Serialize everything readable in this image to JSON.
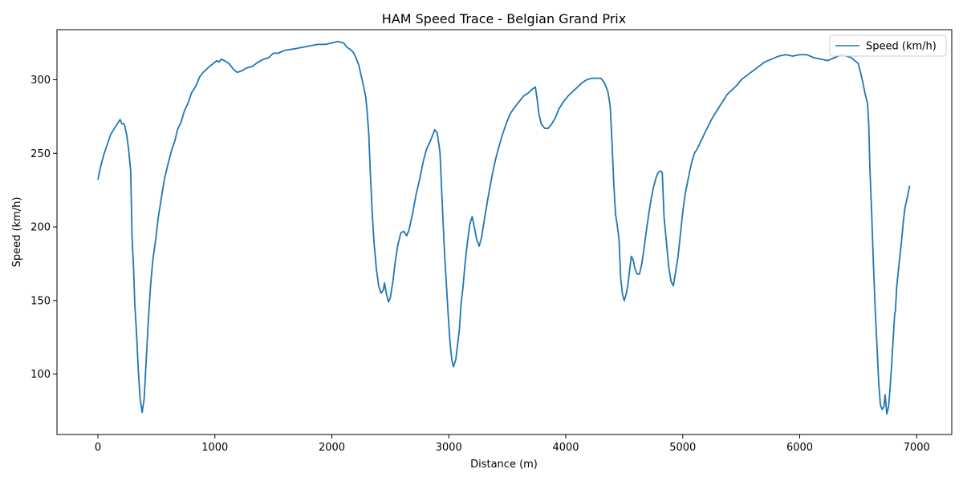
{
  "chart_data": {
    "type": "line",
    "title": "HAM Speed Trace - Belgian Grand Prix",
    "xlabel": "Distance (m)",
    "ylabel": "Speed (km/h)",
    "xlim": [
      -350,
      7300
    ],
    "ylim": [
      59,
      334
    ],
    "xticks": [
      0,
      1000,
      2000,
      3000,
      4000,
      5000,
      6000,
      7000
    ],
    "yticks": [
      100,
      150,
      200,
      250,
      300
    ],
    "grid": false,
    "legend_position": "top-right",
    "series_color": "#1f77b4",
    "series": [
      {
        "name": "Speed (km/h)",
        "points": [
          [
            0,
            232
          ],
          [
            20,
            240
          ],
          [
            50,
            249
          ],
          [
            80,
            256
          ],
          [
            110,
            263
          ],
          [
            150,
            268
          ],
          [
            190,
            273
          ],
          [
            205,
            270
          ],
          [
            225,
            270
          ],
          [
            245,
            263
          ],
          [
            262,
            253
          ],
          [
            280,
            238
          ],
          [
            292,
            193
          ],
          [
            305,
            172
          ],
          [
            315,
            148
          ],
          [
            330,
            128
          ],
          [
            345,
            103
          ],
          [
            360,
            84
          ],
          [
            378,
            74
          ],
          [
            395,
            83
          ],
          [
            410,
            105
          ],
          [
            430,
            135
          ],
          [
            450,
            160
          ],
          [
            470,
            178
          ],
          [
            495,
            192
          ],
          [
            515,
            206
          ],
          [
            545,
            221
          ],
          [
            570,
            233
          ],
          [
            600,
            243
          ],
          [
            630,
            252
          ],
          [
            660,
            259
          ],
          [
            680,
            266
          ],
          [
            710,
            271
          ],
          [
            740,
            279
          ],
          [
            770,
            284
          ],
          [
            800,
            291
          ],
          [
            840,
            296
          ],
          [
            870,
            302
          ],
          [
            900,
            305
          ],
          [
            940,
            308
          ],
          [
            970,
            310
          ],
          [
            1000,
            312
          ],
          [
            1020,
            313
          ],
          [
            1035,
            312
          ],
          [
            1055,
            314
          ],
          [
            1080,
            313
          ],
          [
            1120,
            311
          ],
          [
            1160,
            307
          ],
          [
            1190,
            305
          ],
          [
            1230,
            306
          ],
          [
            1270,
            308
          ],
          [
            1320,
            309
          ],
          [
            1370,
            312
          ],
          [
            1420,
            314
          ],
          [
            1460,
            315
          ],
          [
            1500,
            318
          ],
          [
            1540,
            318
          ],
          [
            1600,
            320
          ],
          [
            1680,
            321
          ],
          [
            1750,
            322
          ],
          [
            1810,
            323
          ],
          [
            1880,
            324
          ],
          [
            1950,
            324
          ],
          [
            2000,
            325
          ],
          [
            2050,
            326
          ],
          [
            2100,
            325
          ],
          [
            2130,
            322
          ],
          [
            2150,
            321
          ],
          [
            2180,
            319
          ],
          [
            2200,
            316
          ],
          [
            2230,
            310
          ],
          [
            2250,
            303
          ],
          [
            2270,
            296
          ],
          [
            2290,
            288
          ],
          [
            2300,
            280
          ],
          [
            2315,
            264
          ],
          [
            2330,
            235
          ],
          [
            2345,
            210
          ],
          [
            2360,
            190
          ],
          [
            2380,
            172
          ],
          [
            2400,
            160
          ],
          [
            2420,
            155
          ],
          [
            2440,
            157
          ],
          [
            2450,
            162
          ],
          [
            2465,
            155
          ],
          [
            2485,
            149
          ],
          [
            2500,
            152
          ],
          [
            2520,
            162
          ],
          [
            2545,
            178
          ],
          [
            2565,
            188
          ],
          [
            2590,
            196
          ],
          [
            2615,
            197
          ],
          [
            2640,
            194
          ],
          [
            2660,
            198
          ],
          [
            2690,
            209
          ],
          [
            2720,
            222
          ],
          [
            2750,
            232
          ],
          [
            2780,
            244
          ],
          [
            2810,
            253
          ],
          [
            2840,
            258
          ],
          [
            2860,
            262
          ],
          [
            2880,
            266
          ],
          [
            2900,
            264
          ],
          [
            2915,
            256
          ],
          [
            2925,
            250
          ],
          [
            2935,
            232
          ],
          [
            2950,
            205
          ],
          [
            2965,
            180
          ],
          [
            2980,
            160
          ],
          [
            2995,
            140
          ],
          [
            3010,
            122
          ],
          [
            3025,
            110
          ],
          [
            3040,
            105
          ],
          [
            3060,
            110
          ],
          [
            3075,
            120
          ],
          [
            3090,
            130
          ],
          [
            3105,
            148
          ],
          [
            3120,
            158
          ],
          [
            3140,
            176
          ],
          [
            3160,
            190
          ],
          [
            3180,
            202
          ],
          [
            3200,
            207
          ],
          [
            3220,
            199
          ],
          [
            3240,
            191
          ],
          [
            3260,
            187
          ],
          [
            3280,
            193
          ],
          [
            3310,
            208
          ],
          [
            3340,
            222
          ],
          [
            3370,
            235
          ],
          [
            3400,
            246
          ],
          [
            3430,
            255
          ],
          [
            3460,
            263
          ],
          [
            3490,
            270
          ],
          [
            3520,
            276
          ],
          [
            3550,
            280
          ],
          [
            3580,
            283
          ],
          [
            3610,
            286
          ],
          [
            3640,
            289
          ],
          [
            3680,
            291
          ],
          [
            3720,
            294
          ],
          [
            3740,
            295
          ],
          [
            3755,
            287
          ],
          [
            3770,
            277
          ],
          [
            3790,
            270
          ],
          [
            3820,
            267
          ],
          [
            3850,
            267
          ],
          [
            3880,
            270
          ],
          [
            3910,
            274
          ],
          [
            3940,
            280
          ],
          [
            3980,
            285
          ],
          [
            4020,
            289
          ],
          [
            4060,
            292
          ],
          [
            4100,
            295
          ],
          [
            4140,
            298
          ],
          [
            4180,
            300
          ],
          [
            4220,
            301
          ],
          [
            4260,
            301
          ],
          [
            4300,
            301
          ],
          [
            4330,
            298
          ],
          [
            4360,
            292
          ],
          [
            4380,
            282
          ],
          [
            4395,
            258
          ],
          [
            4410,
            230
          ],
          [
            4425,
            209
          ],
          [
            4440,
            201
          ],
          [
            4455,
            192
          ],
          [
            4470,
            165
          ],
          [
            4485,
            154
          ],
          [
            4500,
            150
          ],
          [
            4515,
            154
          ],
          [
            4530,
            160
          ],
          [
            4545,
            170
          ],
          [
            4560,
            180
          ],
          [
            4575,
            178
          ],
          [
            4590,
            172
          ],
          [
            4610,
            168
          ],
          [
            4630,
            168
          ],
          [
            4650,
            175
          ],
          [
            4670,
            186
          ],
          [
            4690,
            198
          ],
          [
            4710,
            209
          ],
          [
            4730,
            219
          ],
          [
            4750,
            227
          ],
          [
            4770,
            233
          ],
          [
            4790,
            237
          ],
          [
            4810,
            238
          ],
          [
            4825,
            237
          ],
          [
            4840,
            207
          ],
          [
            4860,
            190
          ],
          [
            4880,
            173
          ],
          [
            4900,
            163
          ],
          [
            4920,
            160
          ],
          [
            4940,
            170
          ],
          [
            4960,
            180
          ],
          [
            4980,
            195
          ],
          [
            5000,
            210
          ],
          [
            5020,
            222
          ],
          [
            5040,
            230
          ],
          [
            5060,
            238
          ],
          [
            5080,
            245
          ],
          [
            5100,
            250
          ],
          [
            5130,
            254
          ],
          [
            5160,
            259
          ],
          [
            5190,
            264
          ],
          [
            5220,
            269
          ],
          [
            5260,
            275
          ],
          [
            5300,
            280
          ],
          [
            5340,
            285
          ],
          [
            5380,
            290
          ],
          [
            5420,
            293
          ],
          [
            5460,
            296
          ],
          [
            5500,
            300
          ],
          [
            5550,
            303
          ],
          [
            5600,
            306
          ],
          [
            5650,
            309
          ],
          [
            5700,
            312
          ],
          [
            5760,
            314
          ],
          [
            5820,
            316
          ],
          [
            5880,
            317
          ],
          [
            5940,
            316
          ],
          [
            6000,
            317
          ],
          [
            6060,
            317
          ],
          [
            6120,
            315
          ],
          [
            6180,
            314
          ],
          [
            6240,
            313
          ],
          [
            6300,
            315
          ],
          [
            6360,
            317
          ],
          [
            6400,
            316
          ],
          [
            6440,
            315
          ],
          [
            6470,
            313
          ],
          [
            6500,
            311
          ],
          [
            6520,
            305
          ],
          [
            6540,
            298
          ],
          [
            6560,
            290
          ],
          [
            6580,
            284
          ],
          [
            6590,
            270
          ],
          [
            6600,
            240
          ],
          [
            6615,
            210
          ],
          [
            6630,
            175
          ],
          [
            6645,
            145
          ],
          [
            6660,
            120
          ],
          [
            6675,
            95
          ],
          [
            6690,
            79
          ],
          [
            6705,
            76
          ],
          [
            6720,
            78
          ],
          [
            6730,
            86
          ],
          [
            6745,
            73
          ],
          [
            6760,
            78
          ],
          [
            6772,
            90
          ],
          [
            6785,
            105
          ],
          [
            6800,
            125
          ],
          [
            6812,
            141
          ],
          [
            6818,
            143
          ],
          [
            6830,
            160
          ],
          [
            6850,
            175
          ],
          [
            6870,
            190
          ],
          [
            6885,
            203
          ],
          [
            6900,
            213
          ],
          [
            6920,
            220
          ],
          [
            6940,
            228
          ]
        ]
      }
    ]
  }
}
